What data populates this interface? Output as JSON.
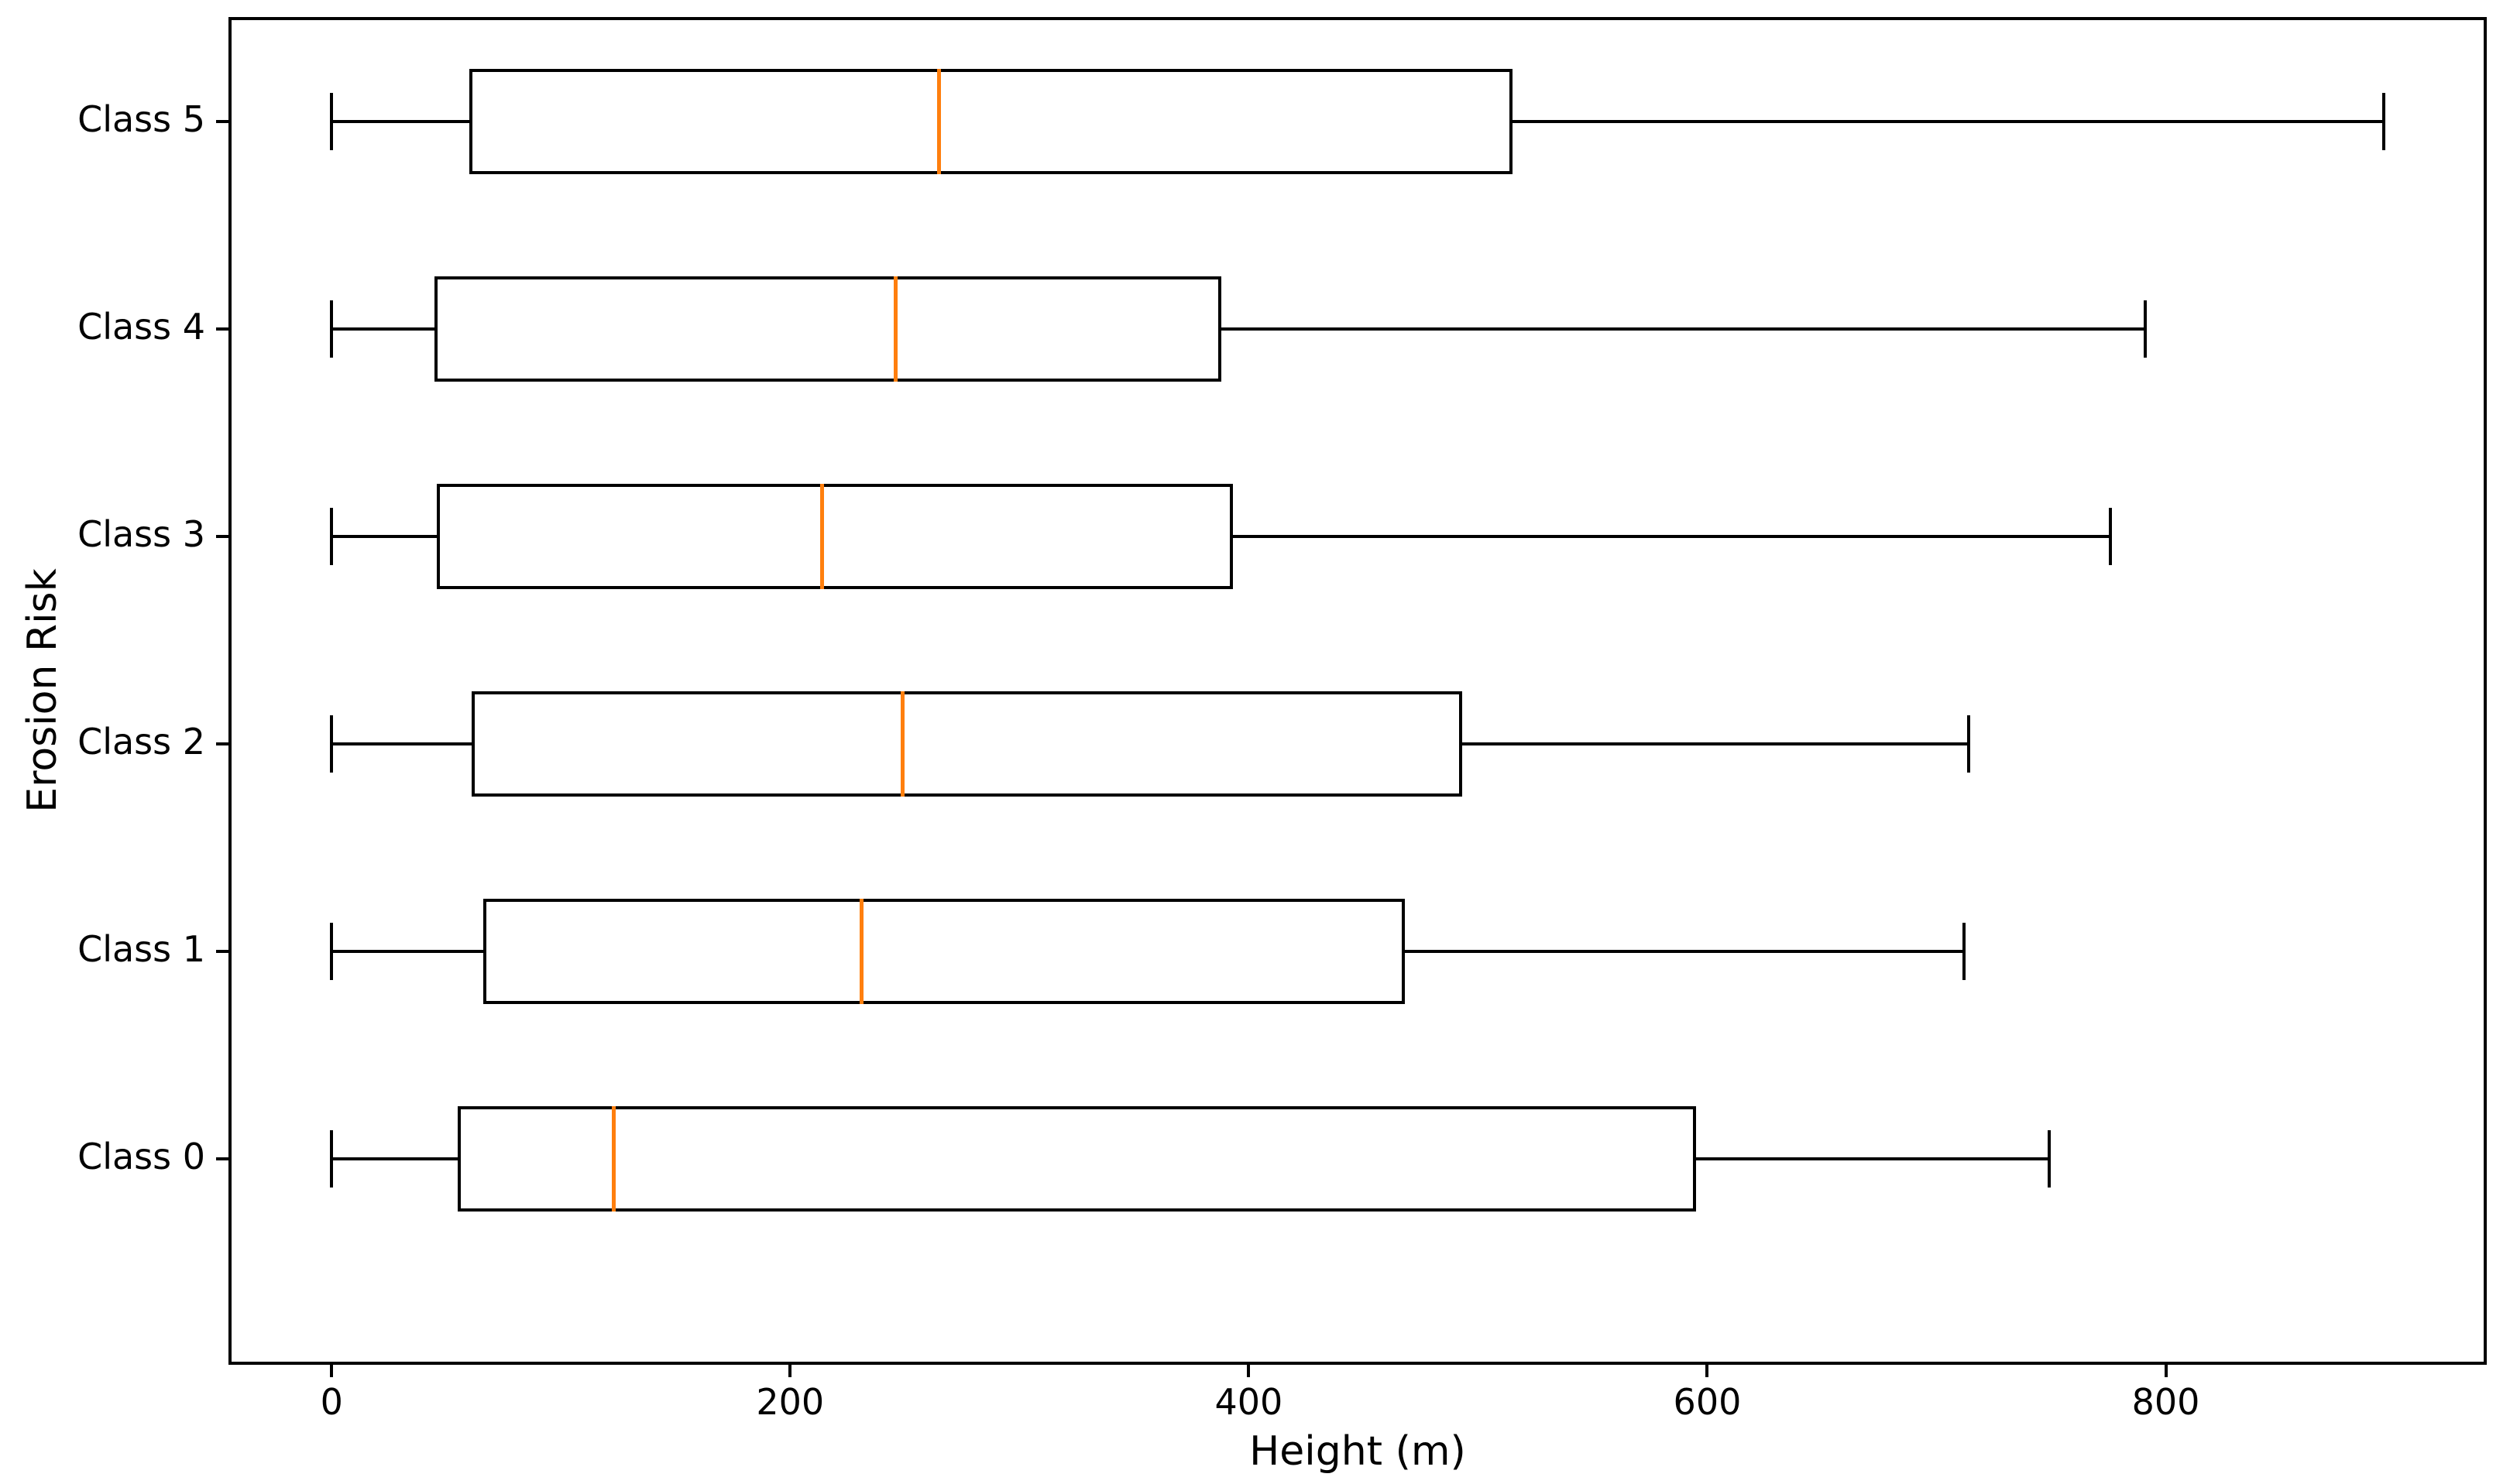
{
  "figure": {
    "background_color": "#ffffff",
    "frame_color": "#000000"
  },
  "chart_data": {
    "type": "boxplot",
    "orientation": "horizontal",
    "title": "",
    "xlabel": "Height (m)",
    "ylabel": "Erosion Risk",
    "xlim": [
      -45,
      940
    ],
    "x_tick_values": [
      0,
      200,
      400,
      600,
      800
    ],
    "x_tick_labels": [
      "0",
      "200",
      "400",
      "600",
      "800"
    ],
    "grid": "off",
    "legend": "none",
    "categories_top_to_bottom": [
      "Class 5",
      "Class 4",
      "Class 3",
      "Class 2",
      "Class 1",
      "Class 0"
    ],
    "series": [
      {
        "label": "Class 5",
        "whisker_low": 0,
        "q1": 60,
        "median": 265,
        "q3": 515,
        "whisker_high": 895
      },
      {
        "label": "Class 4",
        "whisker_low": 0,
        "q1": 45,
        "median": 246,
        "q3": 388,
        "whisker_high": 791
      },
      {
        "label": "Class 3",
        "whisker_low": 0,
        "q1": 46,
        "median": 214,
        "q3": 393,
        "whisker_high": 776
      },
      {
        "label": "Class 2",
        "whisker_low": 0,
        "q1": 61,
        "median": 249,
        "q3": 493,
        "whisker_high": 714
      },
      {
        "label": "Class 1",
        "whisker_low": 0,
        "q1": 66,
        "median": 231,
        "q3": 468,
        "whisker_high": 712
      },
      {
        "label": "Class 0",
        "whisker_low": 0,
        "q1": 55,
        "median": 123,
        "q3": 595,
        "whisker_high": 749
      }
    ],
    "styles": {
      "box_color": "#000000",
      "median_color": "#ff7f0e",
      "whisker_color": "#000000",
      "box_fill": "#ffffff"
    }
  }
}
